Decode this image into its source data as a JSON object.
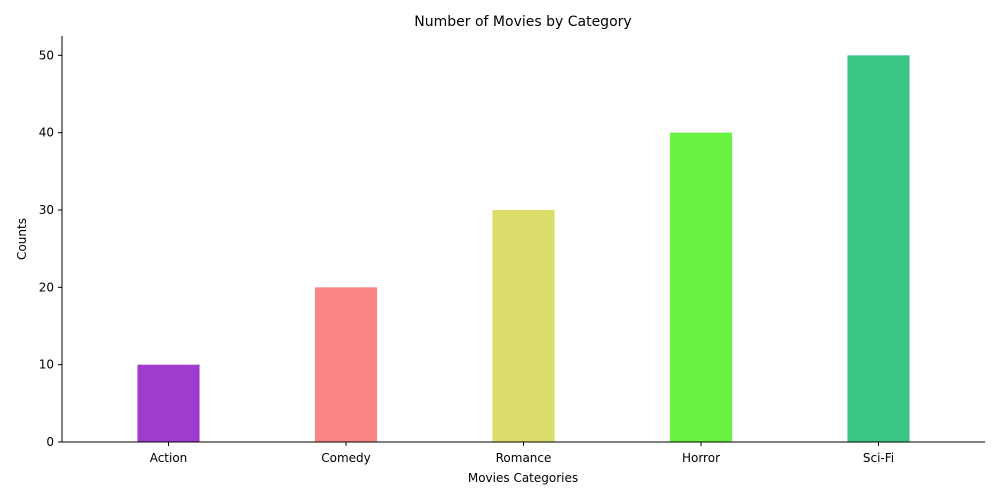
{
  "chart_data": {
    "type": "bar",
    "title": "Number of Movies by Category",
    "xlabel": "Movies Categories",
    "ylabel": "Counts",
    "categories": [
      "Action",
      "Comedy",
      "Romance",
      "Horror",
      "Sci-Fi"
    ],
    "values": [
      10,
      20,
      30,
      40,
      50
    ],
    "colors": [
      "#a13bd0",
      "#fa8684",
      "#dbdd6a",
      "#69f442",
      "#3cc685"
    ],
    "ylim": [
      0,
      52.5
    ],
    "yticks": [
      0,
      10,
      20,
      30,
      40,
      50
    ],
    "grid": false,
    "legend": "none"
  }
}
